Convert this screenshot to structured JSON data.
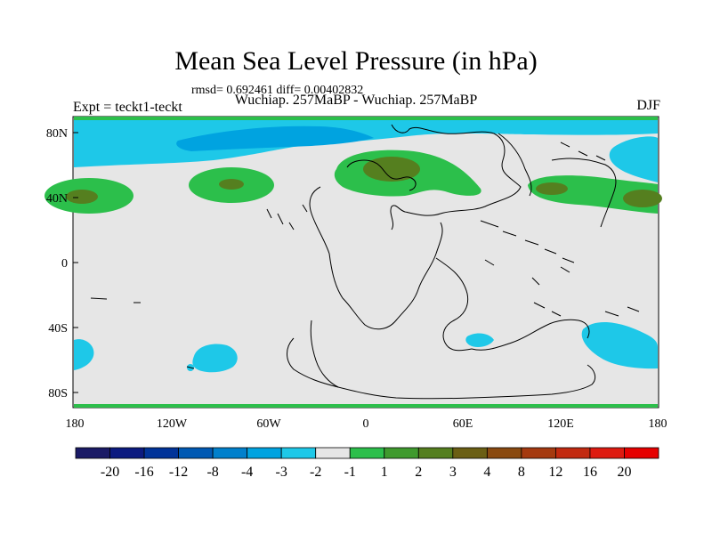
{
  "title": "Mean Sea Level Pressure (in hPa)",
  "stats": "rmsd= 0.692461  diff= 0.00402832",
  "left_label": "Expt = teckt1-teckt",
  "center_label": "Wuchiap. 257MaBP - Wuchiap. 257MaBP",
  "right_label": "DJF",
  "y_ticks": [
    "80N",
    "40N",
    "0",
    "40S",
    "80S"
  ],
  "x_ticks": [
    "180",
    "120W",
    "60W",
    "0",
    "60E",
    "120E",
    "180"
  ],
  "colorbar": {
    "colors": [
      "#1a1a66",
      "#0b1a80",
      "#003399",
      "#0059b3",
      "#0080cc",
      "#00a3e0",
      "#1ec8e8",
      "#e6e6e6",
      "#2cbf4b",
      "#3f9a2e",
      "#557f1f",
      "#6b5f14",
      "#8a4a10",
      "#a53a10",
      "#c22a10",
      "#de1a10",
      "#e60000"
    ],
    "labels": [
      "-20",
      "-16",
      "-12",
      "-8",
      "-4",
      "-3",
      "-2",
      "-1",
      "1",
      "2",
      "3",
      "4",
      "8",
      "12",
      "16",
      "20"
    ]
  },
  "palette": {
    "background": "#e6e6e6",
    "cyan": "#00d5e0",
    "cyan_dark": "#00b4d8",
    "green": "#2cbf4b",
    "olive": "#557f1f"
  }
}
